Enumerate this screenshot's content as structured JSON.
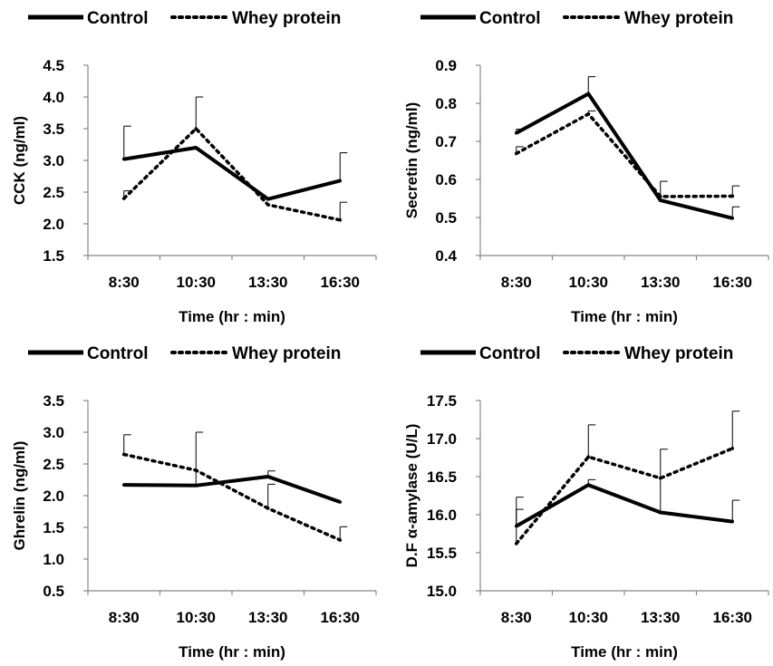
{
  "legend": {
    "control": "Control",
    "whey": "Whey protein"
  },
  "chart_data": [
    {
      "type": "line",
      "ylabel": "CCK (ng/ml)",
      "xlabel": "Time (hr : min)",
      "categories": [
        "8:30",
        "10:30",
        "13:30",
        "16:30"
      ],
      "ylim": [
        1.5,
        4.5
      ],
      "yticks": [
        "1.5",
        "2.0",
        "2.5",
        "3.0",
        "3.5",
        "4.0",
        "4.5"
      ],
      "grid": false,
      "legend_position": "top",
      "series": [
        {
          "name": "Control",
          "style": "solid",
          "values": [
            3.02,
            3.2,
            2.39,
            2.68
          ],
          "errors": [
            0.52,
            0.0,
            0.0,
            0.44
          ]
        },
        {
          "name": "Whey protein",
          "style": "dotted",
          "values": [
            2.4,
            3.5,
            2.3,
            2.06
          ],
          "errors": [
            0.12,
            0.5,
            0.0,
            0.28
          ]
        }
      ]
    },
    {
      "type": "line",
      "ylabel": "Secretin (ng/ml)",
      "xlabel": "Time (hr : min)",
      "categories": [
        "8:30",
        "10:30",
        "13:30",
        "16:30"
      ],
      "ylim": [
        0.4,
        0.9
      ],
      "yticks": [
        "0.4",
        "0.5",
        "0.6",
        "0.7",
        "0.8",
        "0.9"
      ],
      "grid": false,
      "legend_position": "top",
      "series": [
        {
          "name": "Control",
          "style": "solid",
          "values": [
            0.722,
            0.825,
            0.545,
            0.498
          ],
          "errors": [
            0.01,
            0.045,
            0.0,
            0.03
          ]
        },
        {
          "name": "Whey protein",
          "style": "dotted",
          "values": [
            0.668,
            0.772,
            0.555,
            0.556
          ],
          "errors": [
            0.018,
            0.008,
            0.04,
            0.027
          ]
        }
      ]
    },
    {
      "type": "line",
      "ylabel": "Ghrelin (ng/ml)",
      "xlabel": "Time (hr : min)",
      "categories": [
        "8:30",
        "10:30",
        "13:30",
        "16:30"
      ],
      "ylim": [
        0.5,
        3.5
      ],
      "yticks": [
        "0.5",
        "1.0",
        "1.5",
        "2.0",
        "2.5",
        "3.0",
        "3.5"
      ],
      "grid": false,
      "legend_position": "top",
      "series": [
        {
          "name": "Control",
          "style": "solid",
          "values": [
            2.17,
            2.16,
            2.3,
            1.9
          ],
          "errors": [
            0.0,
            0.84,
            0.09,
            0.0
          ]
        },
        {
          "name": "Whey protein",
          "style": "dotted",
          "values": [
            2.65,
            2.4,
            1.8,
            1.3
          ],
          "errors": [
            0.31,
            0.0,
            0.38,
            0.21
          ]
        }
      ]
    },
    {
      "type": "line",
      "ylabel": "D.F α-amylase (U/L)",
      "xlabel": "Time (hr : min)",
      "categories": [
        "8:30",
        "10:30",
        "13:30",
        "16:30"
      ],
      "ylim": [
        15.0,
        17.5
      ],
      "yticks": [
        "15.0",
        "15.5",
        "16.0",
        "16.5",
        "17.0",
        "17.5"
      ],
      "grid": false,
      "legend_position": "top",
      "series": [
        {
          "name": "Control",
          "style": "solid",
          "values": [
            15.85,
            16.39,
            16.03,
            15.91
          ],
          "errors": [
            0.38,
            0.07,
            0.83,
            0.28
          ]
        },
        {
          "name": "Whey protein",
          "style": "dotted",
          "values": [
            15.62,
            16.76,
            16.48,
            16.87
          ],
          "errors": [
            0.45,
            0.42,
            0.0,
            0.49
          ]
        }
      ]
    }
  ]
}
